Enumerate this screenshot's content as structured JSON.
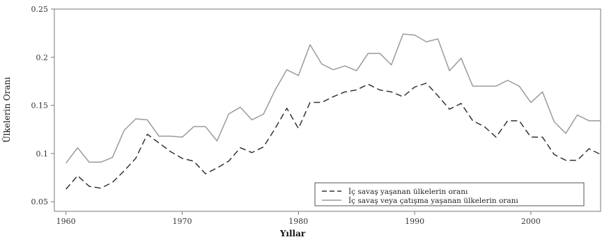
{
  "chart_data": {
    "type": "line",
    "xlabel": "Yıllar",
    "ylabel": "Ülkelerin Oranı",
    "xlim": [
      1959,
      2006
    ],
    "ylim": [
      0.04,
      0.25
    ],
    "xticks": [
      1960,
      1970,
      1980,
      1990,
      2000
    ],
    "xtick_labels": [
      "1960",
      "1970",
      "1980",
      "1990",
      "2000"
    ],
    "yticks": [
      0.05,
      0.1,
      0.15,
      0.2,
      0.25
    ],
    "ytick_labels": [
      "0.05",
      "0.1",
      "0.15",
      "0.2",
      "0.25"
    ],
    "x": [
      1960,
      1961,
      1962,
      1963,
      1964,
      1965,
      1966,
      1967,
      1968,
      1969,
      1970,
      1971,
      1972,
      1973,
      1974,
      1975,
      1976,
      1977,
      1978,
      1979,
      1980,
      1981,
      1982,
      1983,
      1984,
      1985,
      1986,
      1987,
      1988,
      1989,
      1990,
      1991,
      1992,
      1993,
      1994,
      1995,
      1996,
      1997,
      1998,
      1999,
      2000,
      2001,
      2002,
      2003,
      2004,
      2005,
      2006
    ],
    "series": [
      {
        "name": "İç savaş yaşanan ülkelerin oranı",
        "style": "dashed",
        "color": "#333333",
        "values": [
          0.063,
          0.077,
          0.066,
          0.064,
          0.07,
          0.082,
          0.095,
          0.12,
          0.111,
          0.102,
          0.095,
          0.092,
          0.079,
          0.085,
          0.092,
          0.106,
          0.101,
          0.107,
          0.126,
          0.147,
          0.126,
          0.153,
          0.153,
          0.159,
          0.164,
          0.166,
          0.172,
          0.166,
          0.164,
          0.159,
          0.169,
          0.173,
          0.16,
          0.146,
          0.152,
          0.134,
          0.128,
          0.117,
          0.134,
          0.134,
          0.117,
          0.117,
          0.099,
          0.093,
          0.093,
          0.105,
          0.099
        ]
      },
      {
        "name": "İç savaş veya çatışma yaşanan ülkelerin oranı",
        "style": "solid",
        "color": "#9a9a9a",
        "values": [
          0.09,
          0.106,
          0.091,
          0.091,
          0.096,
          0.124,
          0.136,
          0.135,
          0.118,
          0.118,
          0.117,
          0.128,
          0.128,
          0.113,
          0.141,
          0.148,
          0.135,
          0.141,
          0.166,
          0.187,
          0.181,
          0.213,
          0.193,
          0.187,
          0.191,
          0.186,
          0.204,
          0.204,
          0.192,
          0.224,
          0.223,
          0.216,
          0.219,
          0.186,
          0.199,
          0.17,
          0.17,
          0.17,
          0.176,
          0.17,
          0.153,
          0.164,
          0.133,
          0.121,
          0.14,
          0.134,
          0.134
        ]
      }
    ],
    "legend_position": "bottom-right",
    "grid": false
  }
}
